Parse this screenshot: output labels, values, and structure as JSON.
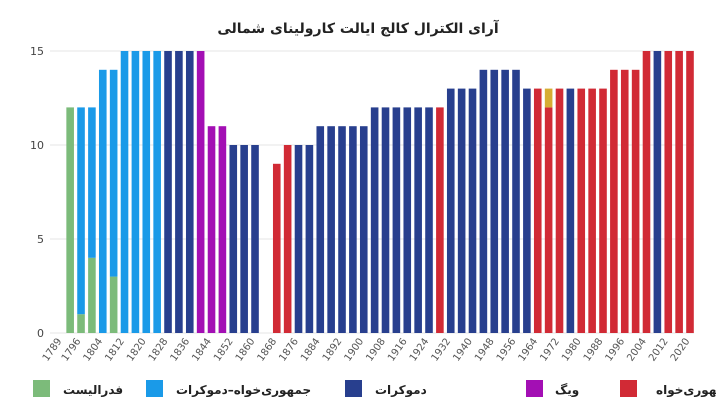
{
  "chart_data": {
    "type": "bar",
    "stacked": true,
    "title": "آرای الکترال کالج ایالت کارولینای شمالی",
    "ylim": [
      0,
      15
    ],
    "yticks": [
      0,
      5,
      10,
      15
    ],
    "grid": true,
    "legend_position": "bottom",
    "x": [
      1789,
      1792,
      1796,
      1800,
      1804,
      1808,
      1812,
      1816,
      1820,
      1824,
      1828,
      1832,
      1836,
      1840,
      1844,
      1848,
      1852,
      1856,
      1860,
      1864,
      1868,
      1872,
      1876,
      1880,
      1884,
      1888,
      1892,
      1896,
      1900,
      1904,
      1908,
      1912,
      1916,
      1920,
      1924,
      1928,
      1932,
      1936,
      1940,
      1944,
      1948,
      1952,
      1956,
      1960,
      1964,
      1968,
      1972,
      1976,
      1980,
      1984,
      1988,
      1992,
      1996,
      2000,
      2004,
      2008,
      2012,
      2016,
      2020
    ],
    "x_tick_labels": [
      "1789",
      "1796",
      "1804",
      "1812",
      "1820",
      "1828",
      "1836",
      "1844",
      "1852",
      "1860",
      "1868",
      "1876",
      "1884",
      "1892",
      "1900",
      "1908",
      "1916",
      "1924",
      "1932",
      "1940",
      "1948",
      "1956",
      "1964",
      "1972",
      "1980",
      "1988",
      "1996",
      "2004",
      "2012",
      "2020"
    ],
    "series": [
      {
        "name": "فدرالیست",
        "color": "#7cbb7a",
        "values": [
          0,
          12,
          1,
          4,
          0,
          3,
          0,
          0,
          0,
          0,
          0,
          0,
          0,
          0,
          0,
          0,
          0,
          0,
          0,
          0,
          0,
          0,
          0,
          0,
          0,
          0,
          0,
          0,
          0,
          0,
          0,
          0,
          0,
          0,
          0,
          0,
          0,
          0,
          0,
          0,
          0,
          0,
          0,
          0,
          0,
          0,
          0,
          0,
          0,
          0,
          0,
          0,
          0,
          0,
          0,
          0,
          0,
          0,
          0
        ]
      },
      {
        "name": "جمهوری‌خواه–دموکرات",
        "color": "#1a9ae8",
        "values": [
          0,
          0,
          11,
          8,
          14,
          11,
          15,
          15,
          15,
          15,
          0,
          0,
          0,
          0,
          0,
          0,
          0,
          0,
          0,
          0,
          0,
          0,
          0,
          0,
          0,
          0,
          0,
          0,
          0,
          0,
          0,
          0,
          0,
          0,
          0,
          0,
          0,
          0,
          0,
          0,
          0,
          0,
          0,
          0,
          0,
          0,
          0,
          0,
          0,
          0,
          0,
          0,
          0,
          0,
          0,
          0,
          0,
          0,
          0
        ]
      },
      {
        "name": "دموکرات",
        "color": "#283f8e",
        "values": [
          0,
          0,
          0,
          0,
          0,
          0,
          0,
          0,
          0,
          0,
          15,
          15,
          15,
          0,
          0,
          0,
          10,
          10,
          10,
          0,
          0,
          0,
          10,
          10,
          11,
          11,
          11,
          11,
          11,
          12,
          12,
          12,
          12,
          12,
          12,
          0,
          13,
          13,
          13,
          14,
          14,
          14,
          14,
          13,
          0,
          0,
          0,
          13,
          0,
          0,
          0,
          0,
          0,
          0,
          0,
          15,
          0,
          0,
          0
        ]
      },
      {
        "name": "ویگ",
        "color": "#a30fb4",
        "values": [
          0,
          0,
          0,
          0,
          0,
          0,
          0,
          0,
          0,
          0,
          0,
          0,
          0,
          15,
          11,
          11,
          0,
          0,
          0,
          0,
          0,
          0,
          0,
          0,
          0,
          0,
          0,
          0,
          0,
          0,
          0,
          0,
          0,
          0,
          0,
          0,
          0,
          0,
          0,
          0,
          0,
          0,
          0,
          0,
          0,
          0,
          0,
          0,
          0,
          0,
          0,
          0,
          0,
          0,
          0,
          0,
          0,
          0,
          0
        ]
      },
      {
        "name": "جمهوری‌خواه",
        "color": "#d12a35",
        "values": [
          0,
          0,
          0,
          0,
          0,
          0,
          0,
          0,
          0,
          0,
          0,
          0,
          0,
          0,
          0,
          0,
          0,
          0,
          0,
          0,
          9,
          10,
          0,
          0,
          0,
          0,
          0,
          0,
          0,
          0,
          0,
          0,
          0,
          0,
          0,
          12,
          0,
          0,
          0,
          0,
          0,
          0,
          0,
          0,
          13,
          12,
          13,
          0,
          13,
          13,
          13,
          14,
          14,
          14,
          15,
          0,
          15,
          15,
          15
        ]
      },
      {
        "name": "",
        "color": "#d6ad33",
        "values": [
          0,
          0,
          0,
          0,
          0,
          0,
          0,
          0,
          0,
          0,
          0,
          0,
          0,
          0,
          0,
          0,
          0,
          0,
          0,
          0,
          0,
          0,
          0,
          0,
          0,
          0,
          0,
          0,
          0,
          0,
          0,
          0,
          0,
          0,
          0,
          0,
          0,
          0,
          0,
          0,
          0,
          0,
          0,
          0,
          0,
          1,
          0,
          0,
          0,
          0,
          0,
          0,
          0,
          0,
          0,
          0,
          0,
          0,
          0
        ]
      }
    ],
    "legend": [
      "فدرالیست",
      "جمهوری‌خواه–دموکرات",
      "دموکرات",
      "ویگ",
      "جمهوری‌خواه"
    ]
  }
}
